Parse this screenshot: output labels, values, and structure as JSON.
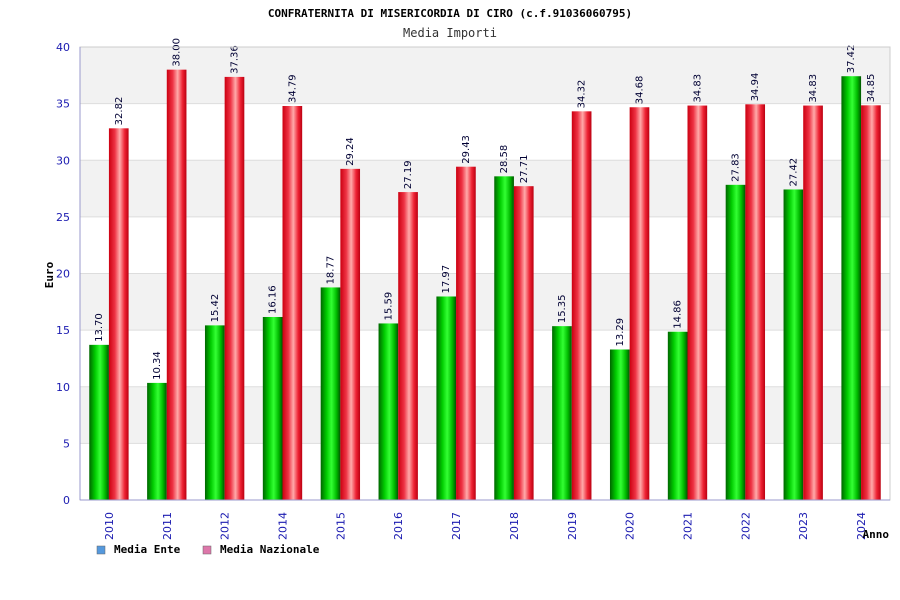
{
  "chart_data": {
    "type": "bar",
    "title": "CONFRATERNITA DI MISERICORDIA DI CIRO (c.f.91036060795)",
    "subtitle": "Media Importi",
    "xlabel": "Anno",
    "ylabel": "Euro",
    "ylim": [
      0,
      40
    ],
    "yticks": [
      0,
      5,
      10,
      15,
      20,
      25,
      30,
      35,
      40
    ],
    "grid": true,
    "legend_position": "bottom-left",
    "categories": [
      "2010",
      "2011",
      "2012",
      "2014",
      "2015",
      "2016",
      "2017",
      "2018",
      "2019",
      "2020",
      "2021",
      "2022",
      "2023",
      "2024"
    ],
    "series": [
      {
        "name": "Media Ente",
        "color": "#00aa00",
        "legend_color": "#5599dd",
        "values": [
          13.7,
          10.34,
          15.42,
          16.16,
          18.77,
          15.59,
          17.97,
          28.58,
          15.35,
          13.29,
          14.86,
          27.83,
          27.42,
          37.42
        ],
        "labels": [
          "13.70",
          "10.34",
          "15.42",
          "16.16",
          "18.77",
          "15.59",
          "17.97",
          "28.58",
          "15.35",
          "13.29",
          "14.86",
          "27.83",
          "27.42",
          "37.42"
        ]
      },
      {
        "name": "Media Nazionale",
        "color": "#ee1122",
        "legend_color": "#dd77aa",
        "values": [
          32.82,
          38.0,
          37.36,
          34.79,
          29.24,
          27.19,
          29.43,
          27.71,
          34.32,
          34.68,
          34.83,
          34.94,
          34.83,
          34.85
        ],
        "labels": [
          "32.82",
          "38.00",
          "37.36",
          "34.79",
          "29.24",
          "27.19",
          "29.43",
          "27.71",
          "34.32",
          "34.68",
          "34.83",
          "34.94",
          "34.83",
          "34.85"
        ]
      }
    ]
  }
}
